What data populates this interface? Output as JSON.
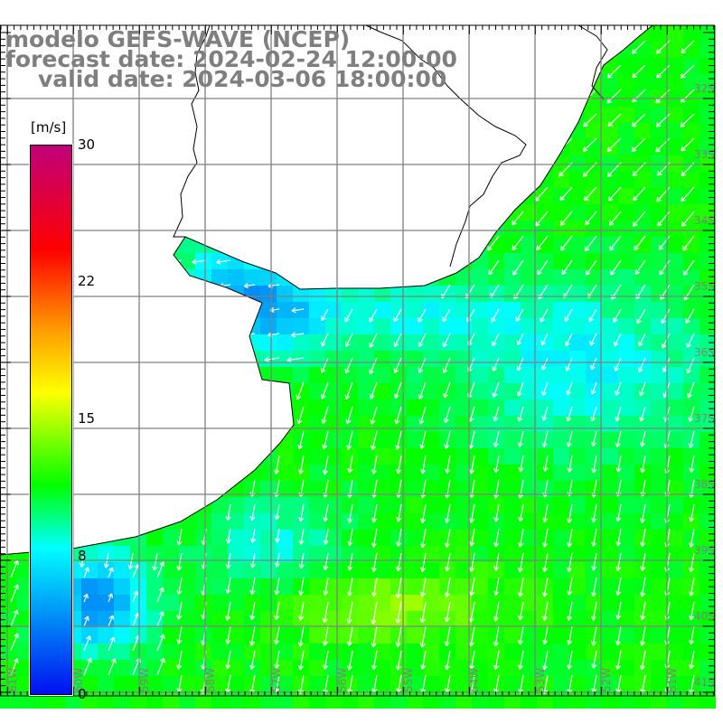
{
  "header": {
    "model": "modelo GEFS-WAVE (NCEP)",
    "forecast": "forecast date: 2024-02-24 12:00:00",
    "valid": "valid date: 2024-03-06 18:00:00"
  },
  "colorbar": {
    "unit": "[m/s]",
    "ticks": [
      "30",
      "22",
      "15",
      "8",
      "0"
    ],
    "range": [
      0,
      30
    ]
  },
  "axes": {
    "longitudes": [
      "61W",
      "60W",
      "59W",
      "58W",
      "57W",
      "56W",
      "55W",
      "54W",
      "53W",
      "52W",
      "51W"
    ],
    "latitudes": [
      "32S",
      "33S",
      "34S",
      "35S",
      "36S",
      "37S",
      "38S",
      "39S",
      "40S",
      "41S"
    ]
  },
  "colors": {
    "land": "#ffffff",
    "grid": "#808080",
    "coast": "#000000",
    "arrow": "#ffffff",
    "label": "#7f7f7f"
  }
}
